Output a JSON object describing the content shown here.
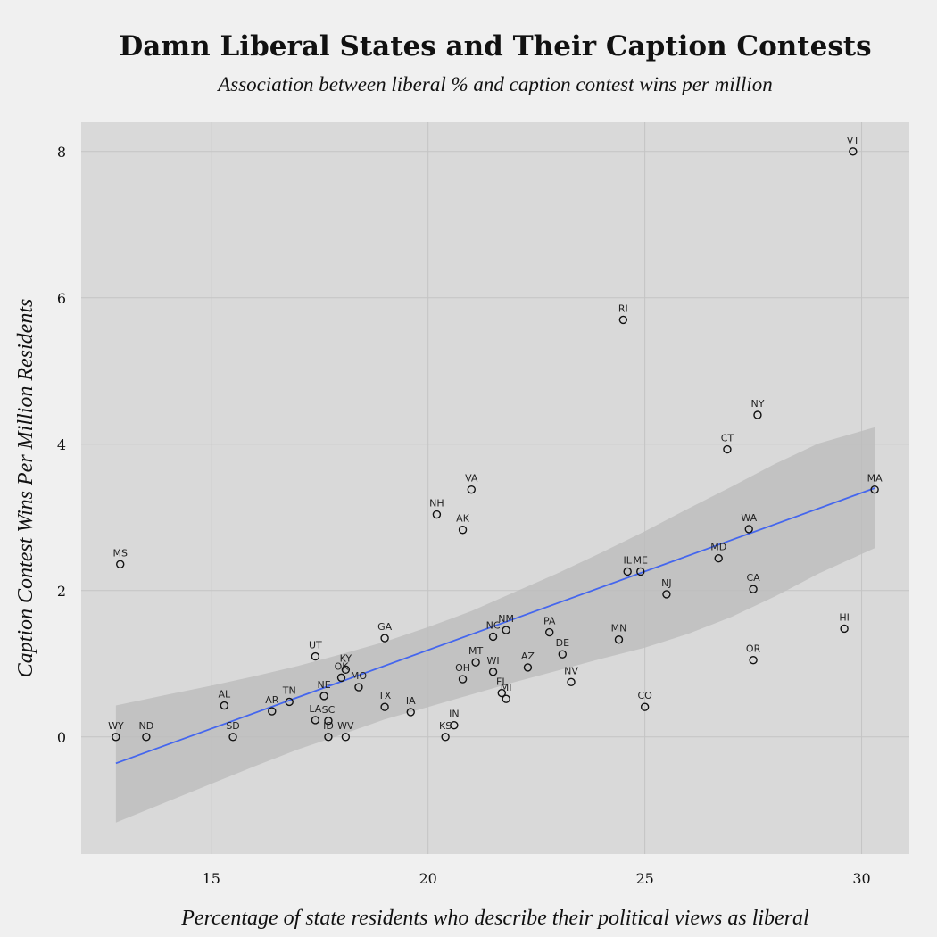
{
  "chart_data": {
    "type": "scatter",
    "title": "Damn Liberal States and Their Caption Contests",
    "subtitle": "Association between liberal % and caption contest wins per million",
    "xlabel": "Percentage of state residents who describe their political views as liberal",
    "ylabel": "Caption Contest Wins Per Million Residents",
    "xlim": [
      12.0,
      31.1
    ],
    "ylim": [
      -1.6,
      8.4
    ],
    "xticks": [
      15,
      20,
      25,
      30
    ],
    "yticks": [
      0,
      2,
      4,
      6,
      8
    ],
    "grid": true,
    "points": [
      {
        "label": "WY",
        "x": 12.8,
        "y": 0.0
      },
      {
        "label": "ND",
        "x": 13.5,
        "y": 0.0
      },
      {
        "label": "MS",
        "x": 12.9,
        "y": 2.36
      },
      {
        "label": "AL",
        "x": 15.3,
        "y": 0.43
      },
      {
        "label": "SD",
        "x": 15.5,
        "y": 0.0
      },
      {
        "label": "AR",
        "x": 16.4,
        "y": 0.35
      },
      {
        "label": "TN",
        "x": 16.8,
        "y": 0.48
      },
      {
        "label": "UT",
        "x": 17.4,
        "y": 1.1
      },
      {
        "label": "LA",
        "x": 17.4,
        "y": 0.23
      },
      {
        "label": "SC",
        "x": 17.7,
        "y": 0.22
      },
      {
        "label": "ID",
        "x": 17.7,
        "y": 0.0
      },
      {
        "label": "NE",
        "x": 17.6,
        "y": 0.56
      },
      {
        "label": "OK",
        "x": 18.0,
        "y": 0.81
      },
      {
        "label": "KY",
        "x": 18.1,
        "y": 0.92
      },
      {
        "label": "MO",
        "x": 18.4,
        "y": 0.68
      },
      {
        "label": "WV",
        "x": 18.1,
        "y": 0.0
      },
      {
        "label": "GA",
        "x": 19.0,
        "y": 1.35
      },
      {
        "label": "TX",
        "x": 19.0,
        "y": 0.41
      },
      {
        "label": "IA",
        "x": 19.6,
        "y": 0.34
      },
      {
        "label": "NH",
        "x": 20.2,
        "y": 3.04
      },
      {
        "label": "KS",
        "x": 20.4,
        "y": 0.0
      },
      {
        "label": "IN",
        "x": 20.6,
        "y": 0.16
      },
      {
        "label": "AK",
        "x": 20.8,
        "y": 2.83
      },
      {
        "label": "OH",
        "x": 20.8,
        "y": 0.79
      },
      {
        "label": "VA",
        "x": 21.0,
        "y": 3.38
      },
      {
        "label": "MT",
        "x": 21.1,
        "y": 1.02
      },
      {
        "label": "NC",
        "x": 21.5,
        "y": 1.37
      },
      {
        "label": "WI",
        "x": 21.5,
        "y": 0.89
      },
      {
        "label": "FL",
        "x": 21.7,
        "y": 0.6
      },
      {
        "label": "MI",
        "x": 21.8,
        "y": 0.52
      },
      {
        "label": "NM",
        "x": 21.8,
        "y": 1.46
      },
      {
        "label": "AZ",
        "x": 22.3,
        "y": 0.95
      },
      {
        "label": "PA",
        "x": 22.8,
        "y": 1.43
      },
      {
        "label": "DE",
        "x": 23.1,
        "y": 1.13
      },
      {
        "label": "NV",
        "x": 23.3,
        "y": 0.75
      },
      {
        "label": "MN",
        "x": 24.4,
        "y": 1.33
      },
      {
        "label": "RI",
        "x": 24.5,
        "y": 5.7
      },
      {
        "label": "IL",
        "x": 24.6,
        "y": 2.26
      },
      {
        "label": "ME",
        "x": 24.9,
        "y": 2.26
      },
      {
        "label": "CO",
        "x": 25.0,
        "y": 0.41
      },
      {
        "label": "NJ",
        "x": 25.5,
        "y": 1.95
      },
      {
        "label": "MD",
        "x": 26.7,
        "y": 2.44
      },
      {
        "label": "CT",
        "x": 26.9,
        "y": 3.93
      },
      {
        "label": "WA",
        "x": 27.4,
        "y": 2.84
      },
      {
        "label": "CA",
        "x": 27.5,
        "y": 2.02
      },
      {
        "label": "OR",
        "x": 27.5,
        "y": 1.05
      },
      {
        "label": "NY",
        "x": 27.6,
        "y": 4.4
      },
      {
        "label": "HI",
        "x": 29.6,
        "y": 1.48
      },
      {
        "label": "VT",
        "x": 29.8,
        "y": 8.0
      },
      {
        "label": "MA",
        "x": 30.3,
        "y": 3.38
      }
    ],
    "trend": {
      "type": "linear",
      "x": [
        12.8,
        30.3
      ],
      "y": [
        -0.36,
        3.4
      ]
    },
    "confidence_band": {
      "x": [
        12.8,
        14.0,
        15.0,
        16.0,
        17.0,
        18.0,
        19.0,
        20.0,
        21.0,
        22.0,
        23.0,
        24.0,
        25.0,
        26.0,
        27.0,
        28.0,
        29.0,
        30.3
      ],
      "upper": [
        0.43,
        0.58,
        0.7,
        0.83,
        0.97,
        1.13,
        1.3,
        1.5,
        1.72,
        1.98,
        2.24,
        2.52,
        2.81,
        3.12,
        3.42,
        3.73,
        4.01,
        4.23
      ],
      "lower": [
        -1.17,
        -0.88,
        -0.64,
        -0.4,
        -0.17,
        0.03,
        0.24,
        0.41,
        0.58,
        0.75,
        0.91,
        1.07,
        1.22,
        1.41,
        1.64,
        1.92,
        2.23,
        2.58
      ]
    },
    "colors": {
      "background": "#f0f0f0",
      "panel": "#d9d9d9",
      "grid": "#c4c4c4",
      "band": "#bdbdbd",
      "trend": "#4466ee",
      "point": "#111111"
    }
  }
}
